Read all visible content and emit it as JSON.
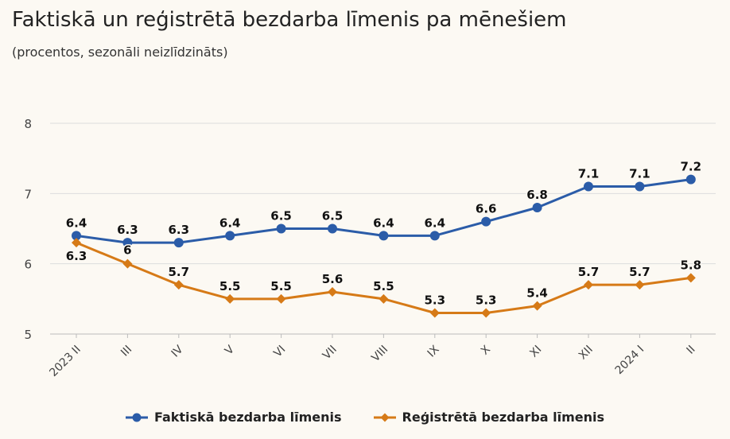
{
  "title": "Faktiskā un reģistrētā bezdarba līmenis pa mēnešiem",
  "subtitle": "(procentos, sezonāli neizlīdzināts)",
  "colors": {
    "series1": "#2b5ca8",
    "series2": "#d67a17",
    "grid": "#dddddd",
    "axis_text": "#444444"
  },
  "chart_data": {
    "type": "line",
    "categories": [
      "2023 II",
      "III",
      "IV",
      "V",
      "VI",
      "VII",
      "VIII",
      "IX",
      "X",
      "XI",
      "XII",
      "2024 I",
      "II"
    ],
    "series": [
      {
        "name": "Faktiskā bezdarba līmenis",
        "marker": "circle",
        "values": [
          6.4,
          6.3,
          6.3,
          6.4,
          6.5,
          6.5,
          6.4,
          6.4,
          6.6,
          6.8,
          7.1,
          7.1,
          7.2
        ]
      },
      {
        "name": "Reģistrētā bezdarba līmenis",
        "marker": "diamond",
        "values": [
          6.3,
          6.0,
          5.7,
          5.5,
          5.5,
          5.6,
          5.5,
          5.3,
          5.3,
          5.4,
          5.7,
          5.7,
          5.8
        ]
      }
    ],
    "ylim": [
      5,
      8
    ],
    "yticks": [
      5,
      6,
      7,
      8
    ],
    "grid": true,
    "legend": "bottom-center",
    "data_labels": true
  }
}
